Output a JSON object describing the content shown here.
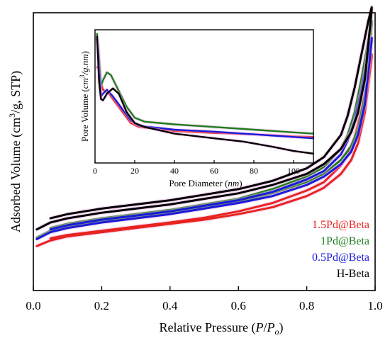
{
  "chart_data": [
    {
      "type": "line",
      "title": "",
      "xlabel": "Relative Pressure (P/Po)",
      "ylabel": "Adsorbed Volume (cm3/g, STP)",
      "xlabel_parts": {
        "prefix": "Relative Pressure (",
        "p": "P",
        "slash": "/",
        "po_main": "P",
        "po_sub": "o",
        "suffix": ")"
      },
      "ylabel_parts": {
        "prefix": "Adsorbed Volume (cm",
        "sup": "3",
        "suffix": "/g, STP)"
      },
      "xlim": [
        0.0,
        1.0
      ],
      "ylim": [
        0,
        100
      ],
      "y_ticks_shown": false,
      "x_ticks": [
        "0.0",
        "0.2",
        "0.4",
        "0.6",
        "0.8",
        "1.0"
      ],
      "x_tick_values": [
        0.0,
        0.2,
        0.4,
        0.6,
        0.8,
        1.0
      ],
      "legend_position": "bottom-right",
      "series": [
        {
          "name": "1.5Pd@Beta",
          "color": "#e8231f",
          "adsorption": [
            [
              0.01,
              16
            ],
            [
              0.05,
              18
            ],
            [
              0.1,
              19.5
            ],
            [
              0.2,
              21
            ],
            [
              0.3,
              22.5
            ],
            [
              0.4,
              24
            ],
            [
              0.5,
              25.5
            ],
            [
              0.6,
              27.5
            ],
            [
              0.7,
              30
            ],
            [
              0.8,
              34
            ],
            [
              0.85,
              37
            ],
            [
              0.9,
              42
            ],
            [
              0.93,
              47
            ],
            [
              0.95,
              53
            ],
            [
              0.97,
              64
            ],
            [
              0.99,
              84
            ]
          ],
          "desorption": [
            [
              0.99,
              85
            ],
            [
              0.98,
              78
            ],
            [
              0.96,
              65
            ],
            [
              0.94,
              55
            ],
            [
              0.92,
              49
            ],
            [
              0.9,
              45
            ],
            [
              0.85,
              39
            ],
            [
              0.8,
              36
            ],
            [
              0.7,
              31.5
            ],
            [
              0.6,
              28.5
            ],
            [
              0.5,
              26.2
            ],
            [
              0.4,
              24.5
            ],
            [
              0.3,
              23
            ],
            [
              0.2,
              21.5
            ],
            [
              0.1,
              20
            ],
            [
              0.05,
              18.8
            ]
          ]
        },
        {
          "name": "1Pd@Beta",
          "color": "#1e7d1e",
          "adsorption": [
            [
              0.01,
              19
            ],
            [
              0.05,
              21.5
            ],
            [
              0.1,
              23
            ],
            [
              0.2,
              25
            ],
            [
              0.3,
              26.5
            ],
            [
              0.4,
              28
            ],
            [
              0.5,
              30
            ],
            [
              0.6,
              32
            ],
            [
              0.7,
              35
            ],
            [
              0.8,
              39
            ],
            [
              0.85,
              42
            ],
            [
              0.9,
              47
            ],
            [
              0.93,
              52
            ],
            [
              0.95,
              58
            ],
            [
              0.97,
              70
            ],
            [
              0.99,
              96
            ]
          ],
          "desorption": [
            [
              0.99,
              97
            ],
            [
              0.98,
              90
            ],
            [
              0.96,
              76
            ],
            [
              0.94,
              64
            ],
            [
              0.92,
              56
            ],
            [
              0.9,
              51
            ],
            [
              0.85,
              44.5
            ],
            [
              0.8,
              41
            ],
            [
              0.7,
              36.5
            ],
            [
              0.6,
              33
            ],
            [
              0.5,
              31
            ],
            [
              0.4,
              29
            ],
            [
              0.3,
              27.5
            ],
            [
              0.2,
              26
            ],
            [
              0.1,
              24
            ],
            [
              0.05,
              22.5
            ]
          ]
        },
        {
          "name": "0.5Pd@Beta",
          "color": "#1a1adb",
          "adsorption": [
            [
              0.01,
              18.5
            ],
            [
              0.05,
              21
            ],
            [
              0.1,
              22.5
            ],
            [
              0.2,
              24.5
            ],
            [
              0.3,
              26
            ],
            [
              0.4,
              27.5
            ],
            [
              0.5,
              29.5
            ],
            [
              0.6,
              31.5
            ],
            [
              0.7,
              34
            ],
            [
              0.8,
              38
            ],
            [
              0.85,
              41
            ],
            [
              0.9,
              45.5
            ],
            [
              0.93,
              50
            ],
            [
              0.95,
              56
            ],
            [
              0.97,
              67
            ],
            [
              0.99,
              90
            ]
          ],
          "desorption": [
            [
              0.99,
              91
            ],
            [
              0.98,
              85
            ],
            [
              0.96,
              72
            ],
            [
              0.94,
              61
            ],
            [
              0.92,
              54
            ],
            [
              0.9,
              49
            ],
            [
              0.85,
              43
            ],
            [
              0.8,
              40
            ],
            [
              0.7,
              35.5
            ],
            [
              0.6,
              32.5
            ],
            [
              0.5,
              30.5
            ],
            [
              0.4,
              28.5
            ],
            [
              0.3,
              27
            ],
            [
              0.2,
              25.5
            ],
            [
              0.1,
              23.5
            ],
            [
              0.05,
              22
            ]
          ]
        },
        {
          "name": "H-Beta",
          "color": "#000000",
          "adsorption": [
            [
              0.01,
              22
            ],
            [
              0.05,
              24.5
            ],
            [
              0.1,
              26
            ],
            [
              0.2,
              28
            ],
            [
              0.3,
              29.5
            ],
            [
              0.4,
              31
            ],
            [
              0.5,
              33
            ],
            [
              0.6,
              35
            ],
            [
              0.7,
              38
            ],
            [
              0.8,
              42
            ],
            [
              0.85,
              45.5
            ],
            [
              0.9,
              51
            ],
            [
              0.93,
              57
            ],
            [
              0.95,
              64
            ],
            [
              0.97,
              76
            ],
            [
              0.99,
              101
            ]
          ],
          "desorption": [
            [
              0.99,
              102
            ],
            [
              0.98,
              97
            ],
            [
              0.96,
              85
            ],
            [
              0.94,
              73
            ],
            [
              0.92,
              63
            ],
            [
              0.9,
              56
            ],
            [
              0.85,
              48
            ],
            [
              0.8,
              44
            ],
            [
              0.7,
              39.5
            ],
            [
              0.6,
              36.5
            ],
            [
              0.5,
              34.5
            ],
            [
              0.4,
              32.5
            ],
            [
              0.3,
              31
            ],
            [
              0.2,
              29.5
            ],
            [
              0.1,
              27.5
            ],
            [
              0.05,
              26
            ]
          ]
        }
      ]
    },
    {
      "type": "line",
      "title": "",
      "xlabel": "Pore Diameter (nm)",
      "ylabel": "Pore Volume (cm3/g.nm)",
      "xlabel_parts": {
        "prefix": "Pore Diameter (",
        "unit": "nm",
        "suffix": ")"
      },
      "ylabel_parts": {
        "prefix": "Pore Volume (",
        "unit_a": "cm",
        "sup": "3",
        "unit_b": "/g.nm",
        "suffix": ")"
      },
      "xlim": [
        0,
        110
      ],
      "ylim": [
        0,
        100
      ],
      "y_ticks_shown": false,
      "x_ticks": [
        "0",
        "20",
        "40",
        "60",
        "80",
        "100"
      ],
      "x_tick_values": [
        0,
        20,
        40,
        60,
        80,
        100
      ],
      "series": [
        {
          "name": "1.5Pd@Beta",
          "color": "#e8231f",
          "points": [
            [
              1,
              72
            ],
            [
              2,
              70
            ],
            [
              3,
              60
            ],
            [
              4,
              55
            ],
            [
              5,
              54
            ],
            [
              7,
              52
            ],
            [
              10,
              46
            ],
            [
              14,
              38
            ],
            [
              18,
              30
            ],
            [
              22,
              27
            ],
            [
              40,
              24
            ],
            [
              60,
              22.5
            ],
            [
              80,
              21.5
            ],
            [
              100,
              20
            ],
            [
              110,
              19.5
            ]
          ]
        },
        {
          "name": "1Pd@Beta",
          "color": "#1e7d1e",
          "points": [
            [
              1,
              97
            ],
            [
              1.5,
              90
            ],
            [
              2,
              80
            ],
            [
              3,
              58
            ],
            [
              4,
              62
            ],
            [
              6,
              68
            ],
            [
              8,
              66
            ],
            [
              12,
              54
            ],
            [
              16,
              42
            ],
            [
              20,
              34
            ],
            [
              25,
              31
            ],
            [
              40,
              29
            ],
            [
              60,
              27
            ],
            [
              80,
              25
            ],
            [
              100,
              23
            ],
            [
              110,
              22
            ]
          ]
        },
        {
          "name": "0.5Pd@Beta",
          "color": "#1a1adb",
          "points": [
            [
              1,
              94
            ],
            [
              1.5,
              85
            ],
            [
              2,
              74
            ],
            [
              3,
              50
            ],
            [
              4,
              52
            ],
            [
              6,
              55
            ],
            [
              9,
              50
            ],
            [
              14,
              40
            ],
            [
              18,
              32
            ],
            [
              22,
              28
            ],
            [
              40,
              25
            ],
            [
              60,
              23.5
            ],
            [
              80,
              21.5
            ],
            [
              100,
              19.5
            ],
            [
              110,
              18.5
            ]
          ]
        },
        {
          "name": "H-Beta",
          "color": "#000000",
          "points": [
            [
              1,
              95
            ],
            [
              1.5,
              80
            ],
            [
              2,
              62
            ],
            [
              3,
              48
            ],
            [
              4,
              47
            ],
            [
              6,
              52
            ],
            [
              9,
              56
            ],
            [
              12,
              52
            ],
            [
              16,
              38
            ],
            [
              20,
              30
            ],
            [
              25,
              27
            ],
            [
              40,
              22
            ],
            [
              60,
              18.5
            ],
            [
              75,
              16
            ],
            [
              90,
              12
            ],
            [
              100,
              9
            ],
            [
              110,
              7
            ]
          ]
        }
      ]
    }
  ],
  "legend": [
    {
      "name": "1.5Pd@Beta",
      "color": "#e8231f"
    },
    {
      "name": "1Pd@Beta",
      "color": "#1e7d1e"
    },
    {
      "name": "0.5Pd@Beta",
      "color": "#1a1adb"
    },
    {
      "name": "H-Beta",
      "color": "#000000"
    }
  ]
}
